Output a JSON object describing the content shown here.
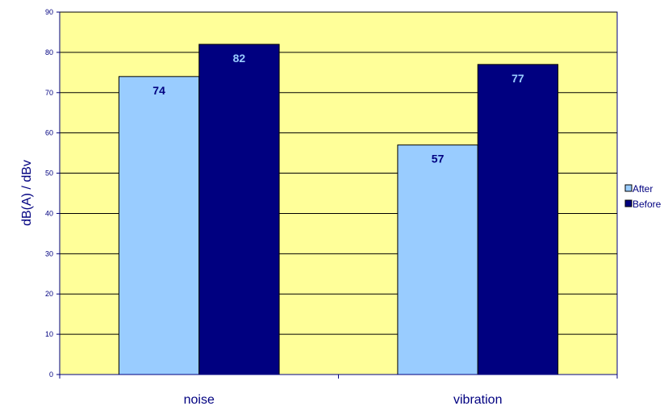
{
  "chart_data": {
    "type": "bar",
    "title": "",
    "xlabel": "",
    "ylabel": "dB(A) / dBv",
    "categories": [
      "noise",
      "vibration"
    ],
    "series": [
      {
        "name": "After",
        "values": [
          74,
          57
        ],
        "color": "#99ccff",
        "label_color": "#000080"
      },
      {
        "name": "Before",
        "values": [
          82,
          77
        ],
        "color": "#000080",
        "label_color": "#99ccff"
      }
    ],
    "ylim": [
      0,
      90
    ],
    "yticks": [
      0,
      10,
      20,
      30,
      40,
      50,
      60,
      70,
      80,
      90
    ],
    "grid": true,
    "legend": "right",
    "plot_background": "#ffff99",
    "axis_color": "#000080"
  }
}
